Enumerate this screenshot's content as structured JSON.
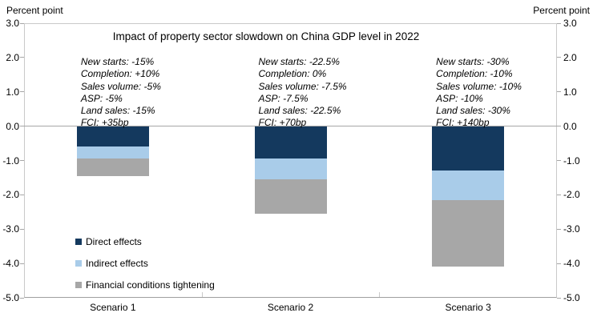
{
  "axis_units": {
    "left": "Percent point",
    "right": "Percent point"
  },
  "chart_data": {
    "type": "bar",
    "stacked": true,
    "orientation": "vertical",
    "title": "Impact of property sector slowdown on China GDP level in 2022",
    "categories": [
      "Scenario 1",
      "Scenario 2",
      "Scenario 3"
    ],
    "series": [
      {
        "name": "Direct effects",
        "color": "#14395e",
        "values": [
          -0.6,
          -0.95,
          -1.3
        ]
      },
      {
        "name": "Indirect effects",
        "color": "#a9cce9",
        "values": [
          -0.35,
          -0.6,
          -0.85
        ]
      },
      {
        "name": "Financial conditions tightening",
        "color": "#a7a7a7",
        "values": [
          -0.5,
          -1.0,
          -1.95
        ]
      }
    ],
    "category_totals": [
      -1.45,
      -2.55,
      -4.1
    ],
    "ylabel": "Percent point",
    "ylim": [
      -5.0,
      3.0
    ],
    "yticks": [
      3.0,
      2.0,
      1.0,
      0.0,
      -1.0,
      -2.0,
      -3.0,
      -4.0,
      -5.0
    ],
    "ytick_labels": [
      "3.0",
      "2.0",
      "1.0",
      "0.0",
      "-1.0",
      "-2.0",
      "-3.0",
      "-4.0",
      "-5.0"
    ],
    "grid": "zero-line-only",
    "legend_position": "inside-bottom-left",
    "annotations": [
      {
        "category": "Scenario 1",
        "lines": [
          "New starts: -15%",
          "Completion: +10%",
          "Sales volume: -5%",
          "ASP: -5%",
          "Land sales: -15%",
          "FCI: +35bp"
        ]
      },
      {
        "category": "Scenario 2",
        "lines": [
          "New starts: -22.5%",
          "Completion: 0%",
          "Sales volume: -7.5%",
          "ASP: -7.5%",
          "Land sales: -22.5%",
          "FCI: +70bp"
        ]
      },
      {
        "category": "Scenario 3",
        "lines": [
          "New starts: -30%",
          "Completion: -10%",
          "Sales volume: -10%",
          "ASP: -10%",
          "Land sales: -30%",
          "FCI: +140bp"
        ]
      }
    ],
    "colors": {
      "plot_border": "#c9c9c9",
      "axis_line": "#9f9f9f",
      "zero_line": "#a6a6a6",
      "text": "#000000",
      "background": "#ffffff"
    }
  }
}
